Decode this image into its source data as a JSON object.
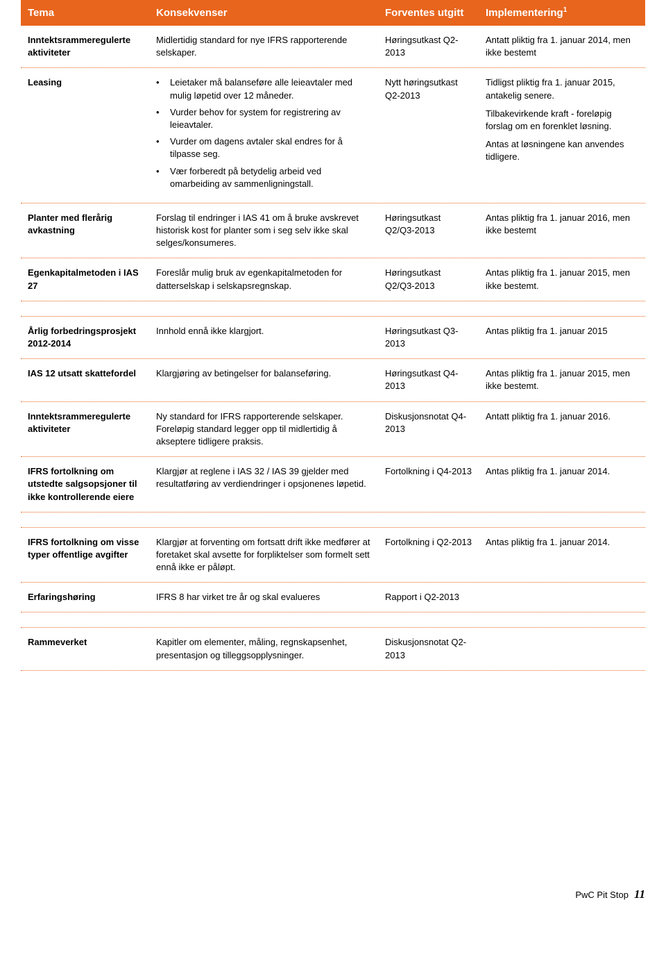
{
  "colors": {
    "header_bg": "#e8651d",
    "header_text": "#ffffff",
    "divider": "#e8651d",
    "body_text": "#000000",
    "page_bg": "#ffffff"
  },
  "header": {
    "col1": "Tema",
    "col2": "Konsekvenser",
    "col3": "Forventes utgitt",
    "col4": "Implementering",
    "sup": "1"
  },
  "rows": [
    {
      "topic": "Inntektsrammeregulerte aktiviteter",
      "cons_text": "Midlertidig standard for nye IFRS rapporterende selskaper.",
      "expected": "Høringsutkast Q2-2013",
      "impl": "Antatt pliktig fra 1. januar 2014, men ikke bestemt"
    },
    {
      "topic": "Leasing",
      "cons_bullets": [
        "Leietaker må balanseføre alle leieavtaler med mulig løpetid over 12 måneder.",
        "Vurder behov for system for registrering av leieavtaler.",
        "Vurder om dagens avtaler skal endres for å tilpasse seg.",
        "Vær forberedt på betydelig arbeid ved omarbeiding av sammenligningstall."
      ],
      "expected": "Nytt høringsutkast Q2-2013",
      "impl_paras": [
        "Tidligst pliktig fra 1. januar 2015, antakelig senere.",
        "Tilbakevirkende kraft - foreløpig forslag om en forenklet løsning.",
        "Antas at løsningene kan anvendes tidligere."
      ]
    },
    {
      "topic": "Planter med flerårig avkastning",
      "cons_text": "Forslag til endringer i IAS 41 om å bruke avskrevet historisk kost for planter som i seg selv ikke skal selges/konsumeres.",
      "expected": "Høringsutkast Q2/Q3-2013",
      "impl": "Antas pliktig fra 1. januar 2016, men ikke bestemt"
    },
    {
      "topic": "Egenkapitalmetoden i IAS 27",
      "cons_text": "Foreslår mulig bruk av egenkapitalmetoden for datterselskap i selskapsregnskap.",
      "expected": "Høringsutkast Q2/Q3-2013",
      "impl": "Antas pliktig fra 1. januar 2015, men ikke bestemt."
    },
    {
      "topic": "Årlig forbedringsprosjekt 2012-2014",
      "cons_text": "Innhold ennå ikke klargjort.",
      "expected": "Høringsutkast Q3-2013",
      "impl": "Antas pliktig fra 1. januar 2015"
    },
    {
      "topic": "IAS 12 utsatt skattefordel",
      "cons_text": "Klargjøring av betingelser for balanseføring.",
      "expected": "Høringsutkast Q4-2013",
      "impl": "Antas pliktig fra 1. januar 2015, men ikke bestemt."
    },
    {
      "topic": "Inntektsrammeregulerte aktiviteter",
      "cons_text": "Ny standard for IFRS rapporterende selskaper. Foreløpig standard legger opp til midlertidig å akseptere tidligere praksis.",
      "expected": "Diskusjonsnotat Q4-2013",
      "impl": "Antatt pliktig fra 1. januar 2016."
    },
    {
      "topic": "IFRS fortolkning om utstedte salgsopsjoner til ikke kontrollerende eiere",
      "cons_text": "Klargjør at reglene i IAS 32 / IAS 39 gjelder med resultatføring av verdiendringer i opsjonenes løpetid.",
      "expected": "Fortolkning i Q4-2013",
      "impl": "Antas pliktig fra 1. januar 2014."
    },
    {
      "topic": "IFRS fortolkning om visse typer offentlige avgifter",
      "cons_text": "Klargjør at forventing om fortsatt drift ikke medfører at foretaket skal avsette for forpliktelser som formelt sett ennå ikke er påløpt.",
      "expected": "Fortolkning i Q2-2013",
      "impl": "Antas pliktig fra 1. januar 2014."
    },
    {
      "topic": "Erfaringshøring",
      "cons_text": "IFRS 8 har virket tre år og skal evalueres",
      "expected": "Rapport i Q2-2013",
      "impl": ""
    },
    {
      "topic": "Rammeverket",
      "cons_text": "Kapitler om elementer, måling, regnskapsenhet, presentasjon og tilleggsopplysninger.",
      "expected": "Diskusjonsnotat Q2-2013",
      "impl": ""
    }
  ],
  "footer": {
    "label": "PwC Pit Stop",
    "page": "11"
  }
}
